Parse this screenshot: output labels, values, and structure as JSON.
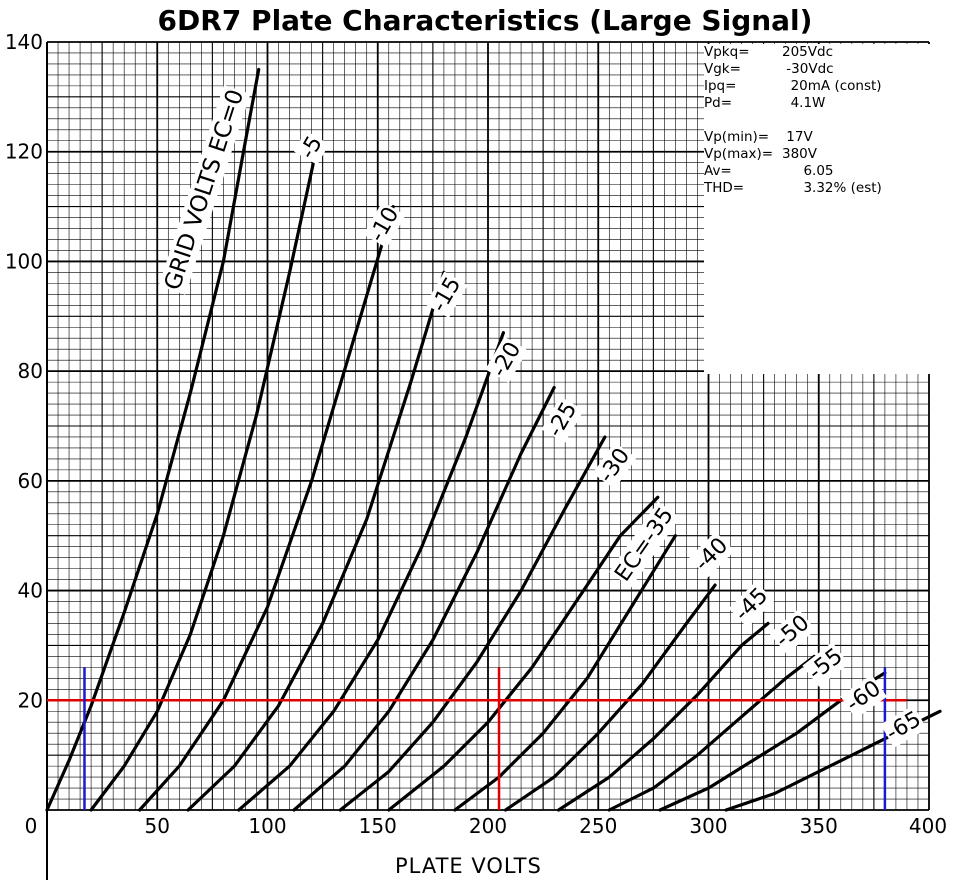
{
  "chart_data": {
    "type": "line",
    "title": "6DR7 Plate Characteristics (Large Signal)",
    "xlabel": "PLATE VOLTS",
    "ylabel": "",
    "xlim": [
      0,
      400
    ],
    "ylim": [
      0,
      140
    ],
    "x_ticks": [
      "0",
      "50",
      "100",
      "150",
      "200",
      "250",
      "300",
      "350",
      "400"
    ],
    "y_ticks": [
      "20",
      "40",
      "60",
      "80",
      "100",
      "120",
      "140"
    ],
    "grid": true,
    "curve_labels": [
      "GRID VOLTS  EC=0",
      "-5",
      "-10",
      "-15",
      "-20",
      "-25",
      "-30",
      "EC=-35",
      "-40",
      "-45",
      "-50",
      "-55",
      "-60",
      "-65"
    ],
    "series": [
      {
        "grid_volts": 0,
        "points": [
          [
            0,
            0
          ],
          [
            10,
            9
          ],
          [
            20,
            19
          ],
          [
            35,
            36
          ],
          [
            50,
            54
          ],
          [
            65,
            76
          ],
          [
            80,
            100
          ],
          [
            90,
            122
          ],
          [
            96,
            135
          ]
        ]
      },
      {
        "grid_volts": -5,
        "points": [
          [
            20,
            0
          ],
          [
            35,
            8
          ],
          [
            50,
            18
          ],
          [
            65,
            32
          ],
          [
            80,
            50
          ],
          [
            95,
            72
          ],
          [
            110,
            98
          ],
          [
            123,
            122
          ]
        ]
      },
      {
        "grid_volts": -10,
        "points": [
          [
            42,
            0
          ],
          [
            60,
            8
          ],
          [
            80,
            20
          ],
          [
            100,
            37
          ],
          [
            120,
            60
          ],
          [
            140,
            87
          ],
          [
            157,
            110
          ]
        ]
      },
      {
        "grid_volts": -15,
        "points": [
          [
            64,
            0
          ],
          [
            85,
            8
          ],
          [
            105,
            19
          ],
          [
            125,
            34
          ],
          [
            145,
            53
          ],
          [
            165,
            78
          ],
          [
            180,
            98
          ]
        ]
      },
      {
        "grid_volts": -20,
        "points": [
          [
            87,
            0
          ],
          [
            110,
            8
          ],
          [
            130,
            18
          ],
          [
            150,
            31
          ],
          [
            170,
            48
          ],
          [
            190,
            68
          ],
          [
            207,
            87
          ]
        ]
      },
      {
        "grid_volts": -25,
        "points": [
          [
            112,
            0
          ],
          [
            135,
            8
          ],
          [
            155,
            18
          ],
          [
            175,
            31
          ],
          [
            195,
            47
          ],
          [
            215,
            65
          ],
          [
            230,
            77
          ]
        ]
      },
      {
        "grid_volts": -30,
        "points": [
          [
            133,
            0
          ],
          [
            155,
            7
          ],
          [
            175,
            16
          ],
          [
            195,
            27
          ],
          [
            215,
            40
          ],
          [
            235,
            55
          ],
          [
            253,
            68
          ]
        ]
      },
      {
        "grid_volts": -35,
        "points": [
          [
            155,
            0
          ],
          [
            180,
            8
          ],
          [
            200,
            16
          ],
          [
            220,
            26
          ],
          [
            240,
            38
          ],
          [
            260,
            50
          ],
          [
            277,
            57
          ]
        ]
      },
      {
        "grid_volts": -40,
        "points": [
          [
            185,
            0
          ],
          [
            205,
            6
          ],
          [
            225,
            14
          ],
          [
            245,
            24
          ],
          [
            265,
            37
          ],
          [
            285,
            50
          ]
        ]
      },
      {
        "grid_volts": -45,
        "points": [
          [
            208,
            0
          ],
          [
            230,
            6
          ],
          [
            250,
            14
          ],
          [
            270,
            23
          ],
          [
            290,
            34
          ],
          [
            303,
            41
          ]
        ]
      },
      {
        "grid_volts": -50,
        "points": [
          [
            232,
            0
          ],
          [
            255,
            6
          ],
          [
            275,
            13
          ],
          [
            295,
            21
          ],
          [
            315,
            30
          ],
          [
            327,
            34
          ]
        ]
      },
      {
        "grid_volts": -55,
        "points": [
          [
            255,
            0
          ],
          [
            275,
            4
          ],
          [
            295,
            10
          ],
          [
            315,
            17
          ],
          [
            335,
            24
          ],
          [
            348,
            28
          ]
        ]
      },
      {
        "grid_volts": -60,
        "points": [
          [
            278,
            0
          ],
          [
            300,
            4
          ],
          [
            320,
            9
          ],
          [
            340,
            14
          ],
          [
            360,
            20
          ],
          [
            380,
            25
          ]
        ]
      },
      {
        "grid_volts": -65,
        "points": [
          [
            308,
            0
          ],
          [
            330,
            3
          ],
          [
            350,
            7
          ],
          [
            370,
            11
          ],
          [
            390,
            15
          ],
          [
            405,
            18
          ]
        ]
      }
    ],
    "load_lines": [
      {
        "color": "#e00000",
        "orientation": "horizontal",
        "y": 20
      },
      {
        "color": "#e00000",
        "orientation": "vertical",
        "x": 205
      },
      {
        "color": "#1a1ad0",
        "orientation": "vertical",
        "x": 17
      },
      {
        "color": "#1a1ad0",
        "orientation": "vertical",
        "x": 380
      }
    ]
  },
  "info": {
    "rows": [
      {
        "label": "Vpkq=",
        "value": "205Vdc"
      },
      {
        "label": "Vgk=",
        "value": " -30Vdc"
      },
      {
        "label": "Ipq=",
        "value": "  20mA (const)"
      },
      {
        "label": "Pd=",
        "value": "  4.1W"
      },
      {
        "label": "",
        "value": ""
      },
      {
        "label": "Vp(min)=",
        "value": " 17V"
      },
      {
        "label": "Vp(max)=",
        "value": "380V"
      },
      {
        "label": "Av=",
        "value": "     6.05"
      },
      {
        "label": "THD=",
        "value": "     3.32% (est)"
      }
    ]
  },
  "colors": {
    "curve": "#000000",
    "grid": "#000000",
    "red_line": "#e00000",
    "blue_line": "#1a1ad0"
  }
}
